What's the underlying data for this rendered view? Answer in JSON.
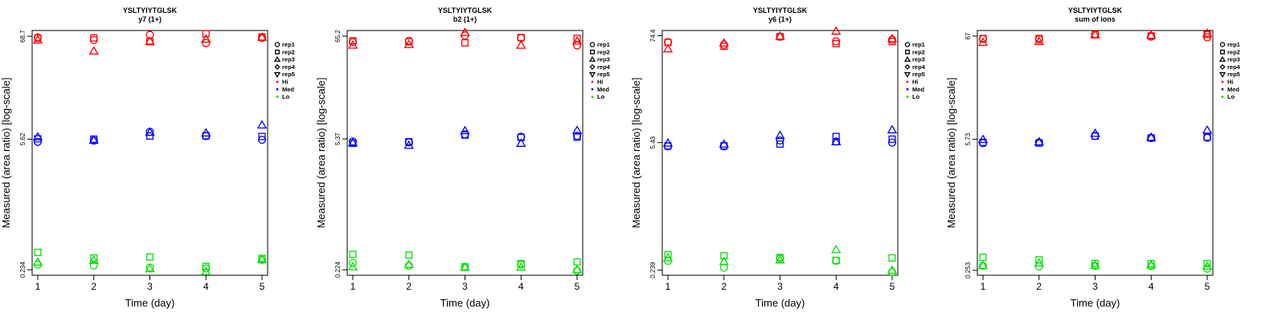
{
  "chart_data": [
    {
      "type": "scatter",
      "title": "YSLTYIYTGLSK",
      "subtitle": "y7 (1+)",
      "xlabel": "Time (day)",
      "ylabel": "Measured (area ratio) [log-scale]",
      "x_ticks": [
        "1",
        "2",
        "3",
        "4",
        "5"
      ],
      "y_ticks": [
        {
          "label": "68.7",
          "value": 68.7
        },
        {
          "label": "5.62",
          "value": 5.62
        },
        {
          "label": "0.234",
          "value": 0.234
        }
      ],
      "ylim": [
        0.205,
        79
      ],
      "legend": {
        "placement": "top-right",
        "reps": [
          "rep1",
          "rep2",
          "rep3",
          "rep4",
          "rep5"
        ],
        "levels": [
          "Hi",
          "Med",
          "Lo"
        ]
      },
      "colors": {
        "Hi": "#ff0000",
        "Med": "#0000ff",
        "Lo": "#00e000"
      },
      "series": [
        {
          "level": "Hi",
          "rep": "rep1",
          "values": [
            66.8,
            62.7,
            71.0,
            58.2,
            66.0
          ]
        },
        {
          "level": "Hi",
          "rep": "rep2",
          "values": [
            65.5,
            66.0,
            60.2,
            73.0,
            67.6
          ]
        },
        {
          "level": "Hi",
          "rep": "rep3",
          "values": [
            62.6,
            47.8,
            60.8,
            63.9,
            66.9
          ]
        },
        {
          "level": "Med",
          "rep": "rep1",
          "values": [
            5.26,
            5.43,
            6.72,
            6.06,
            5.53
          ]
        },
        {
          "level": "Med",
          "rep": "rep2",
          "values": [
            5.66,
            5.62,
            6.06,
            6.1,
            6.0
          ]
        },
        {
          "level": "Med",
          "rep": "rep3",
          "values": [
            5.94,
            5.46,
            6.62,
            6.52,
            7.91
          ]
        },
        {
          "level": "Lo",
          "rep": "rep1",
          "values": [
            0.265,
            0.26,
            0.247,
            0.242,
            0.298
          ]
        },
        {
          "level": "Lo",
          "rep": "rep2",
          "values": [
            0.358,
            0.312,
            0.32,
            0.254,
            0.31
          ]
        },
        {
          "level": "Lo",
          "rep": "rep3",
          "values": [
            0.282,
            0.294,
            0.24,
            0.224,
            0.299
          ]
        }
      ]
    },
    {
      "type": "scatter",
      "title": "YSLTYIYTGLSK",
      "subtitle": "b2 (1+)",
      "xlabel": "Time (day)",
      "ylabel": "Measured (area ratio) [log-scale]",
      "x_ticks": [
        "1",
        "2",
        "3",
        "4",
        "5"
      ],
      "y_ticks": [
        {
          "label": "65.2",
          "value": 65.2
        },
        {
          "label": "5.37",
          "value": 5.37
        },
        {
          "label": "0.224",
          "value": 0.224
        }
      ],
      "ylim": [
        0.196,
        74.8
      ],
      "legend": {
        "placement": "top-right",
        "reps": [
          "rep1",
          "rep2",
          "rep3",
          "rep4",
          "rep5"
        ],
        "levels": [
          "Hi",
          "Med",
          "Lo"
        ]
      },
      "colors": {
        "Hi": "#ff0000",
        "Med": "#0000ff",
        "Lo": "#00e000"
      },
      "series": [
        {
          "level": "Hi",
          "rep": "rep1",
          "values": [
            56.7,
            58.2,
            66.3,
            62.5,
            52.0
          ]
        },
        {
          "level": "Hi",
          "rep": "rep2",
          "values": [
            58.2,
            56.8,
            55.4,
            63.1,
            61.9
          ]
        },
        {
          "level": "Hi",
          "rep": "rep3",
          "values": [
            52.3,
            53.1,
            71.2,
            52.2,
            57.8
          ]
        },
        {
          "level": "Med",
          "rep": "rep1",
          "values": [
            5.05,
            4.95,
            6.0,
            5.66,
            5.79
          ]
        },
        {
          "level": "Med",
          "rep": "rep2",
          "values": [
            4.84,
            5.02,
            5.9,
            5.58,
            5.62
          ]
        },
        {
          "level": "Med",
          "rep": "rep3",
          "values": [
            4.88,
            4.59,
            6.55,
            4.82,
            6.58
          ]
        },
        {
          "level": "Lo",
          "rep": "rep1",
          "values": [
            0.265,
            0.247,
            0.238,
            0.253,
            0.218
          ]
        },
        {
          "level": "Lo",
          "rep": "rep2",
          "values": [
            0.326,
            0.32,
            0.241,
            0.26,
            0.271
          ]
        },
        {
          "level": "Lo",
          "rep": "rep3",
          "values": [
            0.24,
            0.254,
            0.237,
            0.238,
            0.225
          ]
        }
      ]
    },
    {
      "type": "scatter",
      "title": "YSLTYIYTGLSK",
      "subtitle": "y6 (1+)",
      "xlabel": "Time (day)",
      "ylabel": "Measured (area ratio) [log-scale]",
      "x_ticks": [
        "1",
        "2",
        "3",
        "4",
        "5"
      ],
      "y_ticks": [
        {
          "label": "74.4",
          "value": 74.4
        },
        {
          "label": "5.43",
          "value": 5.43
        },
        {
          "label": "0.239",
          "value": 0.239
        }
      ],
      "ylim": [
        0.211,
        84.4
      ],
      "legend": {
        "placement": "top-right",
        "reps": [
          "rep1",
          "rep2",
          "rep3",
          "rep4",
          "rep5"
        ],
        "levels": [
          "Hi",
          "Med",
          "Lo"
        ]
      },
      "colors": {
        "Hi": "#ff0000",
        "Med": "#0000ff",
        "Lo": "#00e000"
      },
      "series": [
        {
          "level": "Hi",
          "rep": "rep1",
          "values": [
            63.5,
            59.8,
            72.3,
            64.8,
            67.4
          ]
        },
        {
          "level": "Hi",
          "rep": "rep2",
          "values": [
            63.0,
            57.5,
            72.6,
            61.2,
            64.4
          ]
        },
        {
          "level": "Hi",
          "rep": "rep3",
          "values": [
            53.7,
            62.0,
            73.4,
            82.9,
            69.0
          ]
        },
        {
          "level": "Med",
          "rep": "rep1",
          "values": [
            4.96,
            4.96,
            5.72,
            5.56,
            5.42
          ]
        },
        {
          "level": "Med",
          "rep": "rep2",
          "values": [
            5.0,
            5.01,
            5.23,
            6.3,
            5.91
          ]
        },
        {
          "level": "Med",
          "rep": "rep3",
          "values": [
            5.36,
            5.23,
            6.45,
            5.53,
            7.4
          ]
        },
        {
          "level": "Lo",
          "rep": "rep1",
          "values": [
            0.3,
            0.254,
            0.317,
            0.301,
            0.228
          ]
        },
        {
          "level": "Lo",
          "rep": "rep2",
          "values": [
            0.349,
            0.339,
            0.326,
            0.304,
            0.323
          ]
        },
        {
          "level": "Lo",
          "rep": "rep3",
          "values": [
            0.323,
            0.295,
            0.306,
            0.394,
            0.238
          ]
        }
      ]
    },
    {
      "type": "scatter",
      "title": "YSLTYIYTGLSK",
      "subtitle": "sum of ions",
      "xlabel": "Time (day)",
      "ylabel": "Measured (area ratio) [log-scale]",
      "x_ticks": [
        "1",
        "2",
        "3",
        "4",
        "5"
      ],
      "y_ticks": [
        {
          "label": "67",
          "value": 67
        },
        {
          "label": "5.73",
          "value": 5.73
        },
        {
          "label": "0.253",
          "value": 0.253
        }
      ],
      "ylim": [
        0.225,
        76.5
      ],
      "legend": {
        "placement": "top-right",
        "reps": [
          "rep1",
          "rep2",
          "rep3",
          "rep4",
          "rep5"
        ],
        "levels": [
          "Hi",
          "Med",
          "Lo"
        ]
      },
      "colors": {
        "Hi": "#ff0000",
        "Med": "#0000ff",
        "Lo": "#00e000"
      },
      "series": [
        {
          "level": "Hi",
          "rep": "rep1",
          "values": [
            62.6,
            62.0,
            70.2,
            66.0,
            65.0
          ]
        },
        {
          "level": "Hi",
          "rep": "rep2",
          "values": [
            63.1,
            63.3,
            69.1,
            67.2,
            69.5
          ]
        },
        {
          "level": "Hi",
          "rep": "rep3",
          "values": [
            57.6,
            58.9,
            69.1,
            68.2,
            71.5
          ]
        },
        {
          "level": "Med",
          "rep": "rep1",
          "values": [
            5.22,
            5.32,
            6.2,
            5.9,
            5.95
          ]
        },
        {
          "level": "Med",
          "rep": "rep2",
          "values": [
            5.33,
            5.25,
            6.18,
            5.92,
            6.03
          ]
        },
        {
          "level": "Med",
          "rep": "rep3",
          "values": [
            5.7,
            5.38,
            6.6,
            6.01,
            7.12
          ]
        },
        {
          "level": "Lo",
          "rep": "rep1",
          "values": [
            0.282,
            0.278,
            0.281,
            0.28,
            0.263
          ]
        },
        {
          "level": "Lo",
          "rep": "rep2",
          "values": [
            0.345,
            0.325,
            0.298,
            0.297,
            0.297
          ]
        },
        {
          "level": "Lo",
          "rep": "rep3",
          "values": [
            0.283,
            0.301,
            0.284,
            0.286,
            0.28
          ]
        }
      ]
    }
  ]
}
